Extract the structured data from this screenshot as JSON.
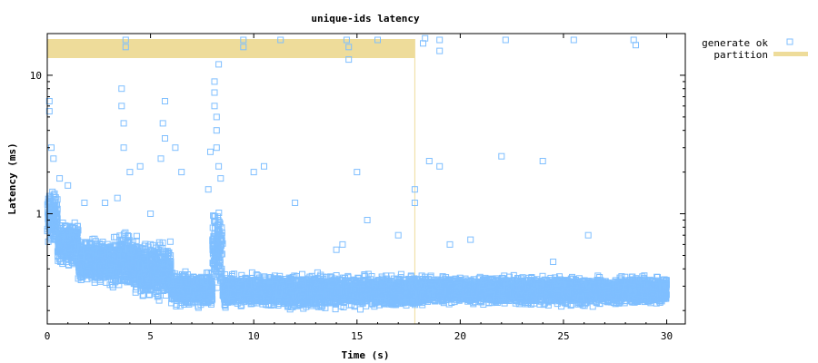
{
  "chart_data": {
    "type": "scatter",
    "title": "unique-ids latency",
    "xlabel": "Time (s)",
    "ylabel": "Latency (ms)",
    "xlim": [
      0,
      30.9
    ],
    "ylim": [
      0.16,
      20
    ],
    "yscale": "log",
    "x_ticks": [
      0,
      5,
      10,
      15,
      20,
      25,
      30
    ],
    "x_tick_labels": [
      "0",
      "5",
      "10",
      "15",
      "20",
      "25",
      "30"
    ],
    "y_ticks": [
      1,
      10
    ],
    "y_tick_labels": [
      "1",
      "10"
    ],
    "grid": false,
    "legend_position": "outside-right",
    "series": [
      {
        "name": "generate ok",
        "marker": "open-square",
        "color": "#7fbfff",
        "bands": [
          {
            "x": [
              0.0,
              0.5
            ],
            "y": [
              0.55,
              1.6
            ]
          },
          {
            "x": [
              0.5,
              1.5
            ],
            "y": [
              0.4,
              0.95
            ]
          },
          {
            "x": [
              1.5,
              3.0
            ],
            "y": [
              0.28,
              0.7
            ]
          },
          {
            "x": [
              3.0,
              4.5
            ],
            "y": [
              0.25,
              0.8
            ]
          },
          {
            "x": [
              4.5,
              6.0
            ],
            "y": [
              0.22,
              0.7
            ]
          },
          {
            "x": [
              6.0,
              8.0
            ],
            "y": [
              0.2,
              0.4
            ]
          },
          {
            "x": [
              8.0,
              8.5
            ],
            "y": [
              0.25,
              1.3
            ]
          },
          {
            "x": [
              8.5,
              18.0
            ],
            "y": [
              0.2,
              0.38
            ]
          },
          {
            "x": [
              18.0,
              30.0
            ],
            "y": [
              0.21,
              0.37
            ]
          }
        ],
        "outliers": [
          {
            "x": 0.1,
            "y": 6.5
          },
          {
            "x": 0.1,
            "y": 5.5
          },
          {
            "x": 0.2,
            "y": 3.0
          },
          {
            "x": 0.3,
            "y": 2.5
          },
          {
            "x": 0.6,
            "y": 1.8
          },
          {
            "x": 1.0,
            "y": 1.6
          },
          {
            "x": 1.8,
            "y": 1.2
          },
          {
            "x": 2.8,
            "y": 1.2
          },
          {
            "x": 3.4,
            "y": 1.3
          },
          {
            "x": 3.6,
            "y": 8.0
          },
          {
            "x": 3.6,
            "y": 6.0
          },
          {
            "x": 3.7,
            "y": 4.5
          },
          {
            "x": 3.7,
            "y": 3.0
          },
          {
            "x": 3.8,
            "y": 18.0
          },
          {
            "x": 3.8,
            "y": 16.0
          },
          {
            "x": 4.0,
            "y": 2.0
          },
          {
            "x": 4.5,
            "y": 2.2
          },
          {
            "x": 5.0,
            "y": 1.0
          },
          {
            "x": 5.5,
            "y": 2.5
          },
          {
            "x": 5.6,
            "y": 4.5
          },
          {
            "x": 5.7,
            "y": 3.5
          },
          {
            "x": 5.7,
            "y": 6.5
          },
          {
            "x": 6.2,
            "y": 3.0
          },
          {
            "x": 6.5,
            "y": 2.0
          },
          {
            "x": 7.8,
            "y": 1.5
          },
          {
            "x": 7.9,
            "y": 2.8
          },
          {
            "x": 8.1,
            "y": 9.0
          },
          {
            "x": 8.1,
            "y": 7.5
          },
          {
            "x": 8.1,
            "y": 6.0
          },
          {
            "x": 8.2,
            "y": 5.0
          },
          {
            "x": 8.2,
            "y": 4.0
          },
          {
            "x": 8.2,
            "y": 3.0
          },
          {
            "x": 8.3,
            "y": 2.2
          },
          {
            "x": 8.3,
            "y": 12.0
          },
          {
            "x": 8.4,
            "y": 1.8
          },
          {
            "x": 9.5,
            "y": 18.0
          },
          {
            "x": 9.5,
            "y": 16.0
          },
          {
            "x": 10.0,
            "y": 2.0
          },
          {
            "x": 10.5,
            "y": 2.2
          },
          {
            "x": 11.3,
            "y": 18.0
          },
          {
            "x": 12.0,
            "y": 1.2
          },
          {
            "x": 14.0,
            "y": 0.55
          },
          {
            "x": 14.3,
            "y": 0.6
          },
          {
            "x": 14.5,
            "y": 18.0
          },
          {
            "x": 14.6,
            "y": 16.0
          },
          {
            "x": 14.6,
            "y": 13.0
          },
          {
            "x": 15.0,
            "y": 2.0
          },
          {
            "x": 15.5,
            "y": 0.9
          },
          {
            "x": 16.0,
            "y": 18.0
          },
          {
            "x": 17.0,
            "y": 0.7
          },
          {
            "x": 17.8,
            "y": 1.5
          },
          {
            "x": 17.8,
            "y": 1.2
          },
          {
            "x": 18.2,
            "y": 17.0
          },
          {
            "x": 18.3,
            "y": 18.5
          },
          {
            "x": 18.5,
            "y": 2.4
          },
          {
            "x": 19.0,
            "y": 18.0
          },
          {
            "x": 19.0,
            "y": 15.0
          },
          {
            "x": 19.0,
            "y": 2.2
          },
          {
            "x": 19.5,
            "y": 0.6
          },
          {
            "x": 20.5,
            "y": 0.65
          },
          {
            "x": 22.2,
            "y": 18.0
          },
          {
            "x": 22.0,
            "y": 2.6
          },
          {
            "x": 24.0,
            "y": 2.4
          },
          {
            "x": 24.5,
            "y": 0.45
          },
          {
            "x": 25.5,
            "y": 18.0
          },
          {
            "x": 26.2,
            "y": 0.7
          },
          {
            "x": 28.4,
            "y": 18.0
          },
          {
            "x": 28.5,
            "y": 16.5
          },
          {
            "x": 29.8,
            "y": 0.3
          }
        ]
      },
      {
        "name": "partition",
        "type": "interval",
        "color": "#eedc9a",
        "intervals": [
          {
            "start": 0.0,
            "end": 17.8
          }
        ]
      }
    ]
  }
}
